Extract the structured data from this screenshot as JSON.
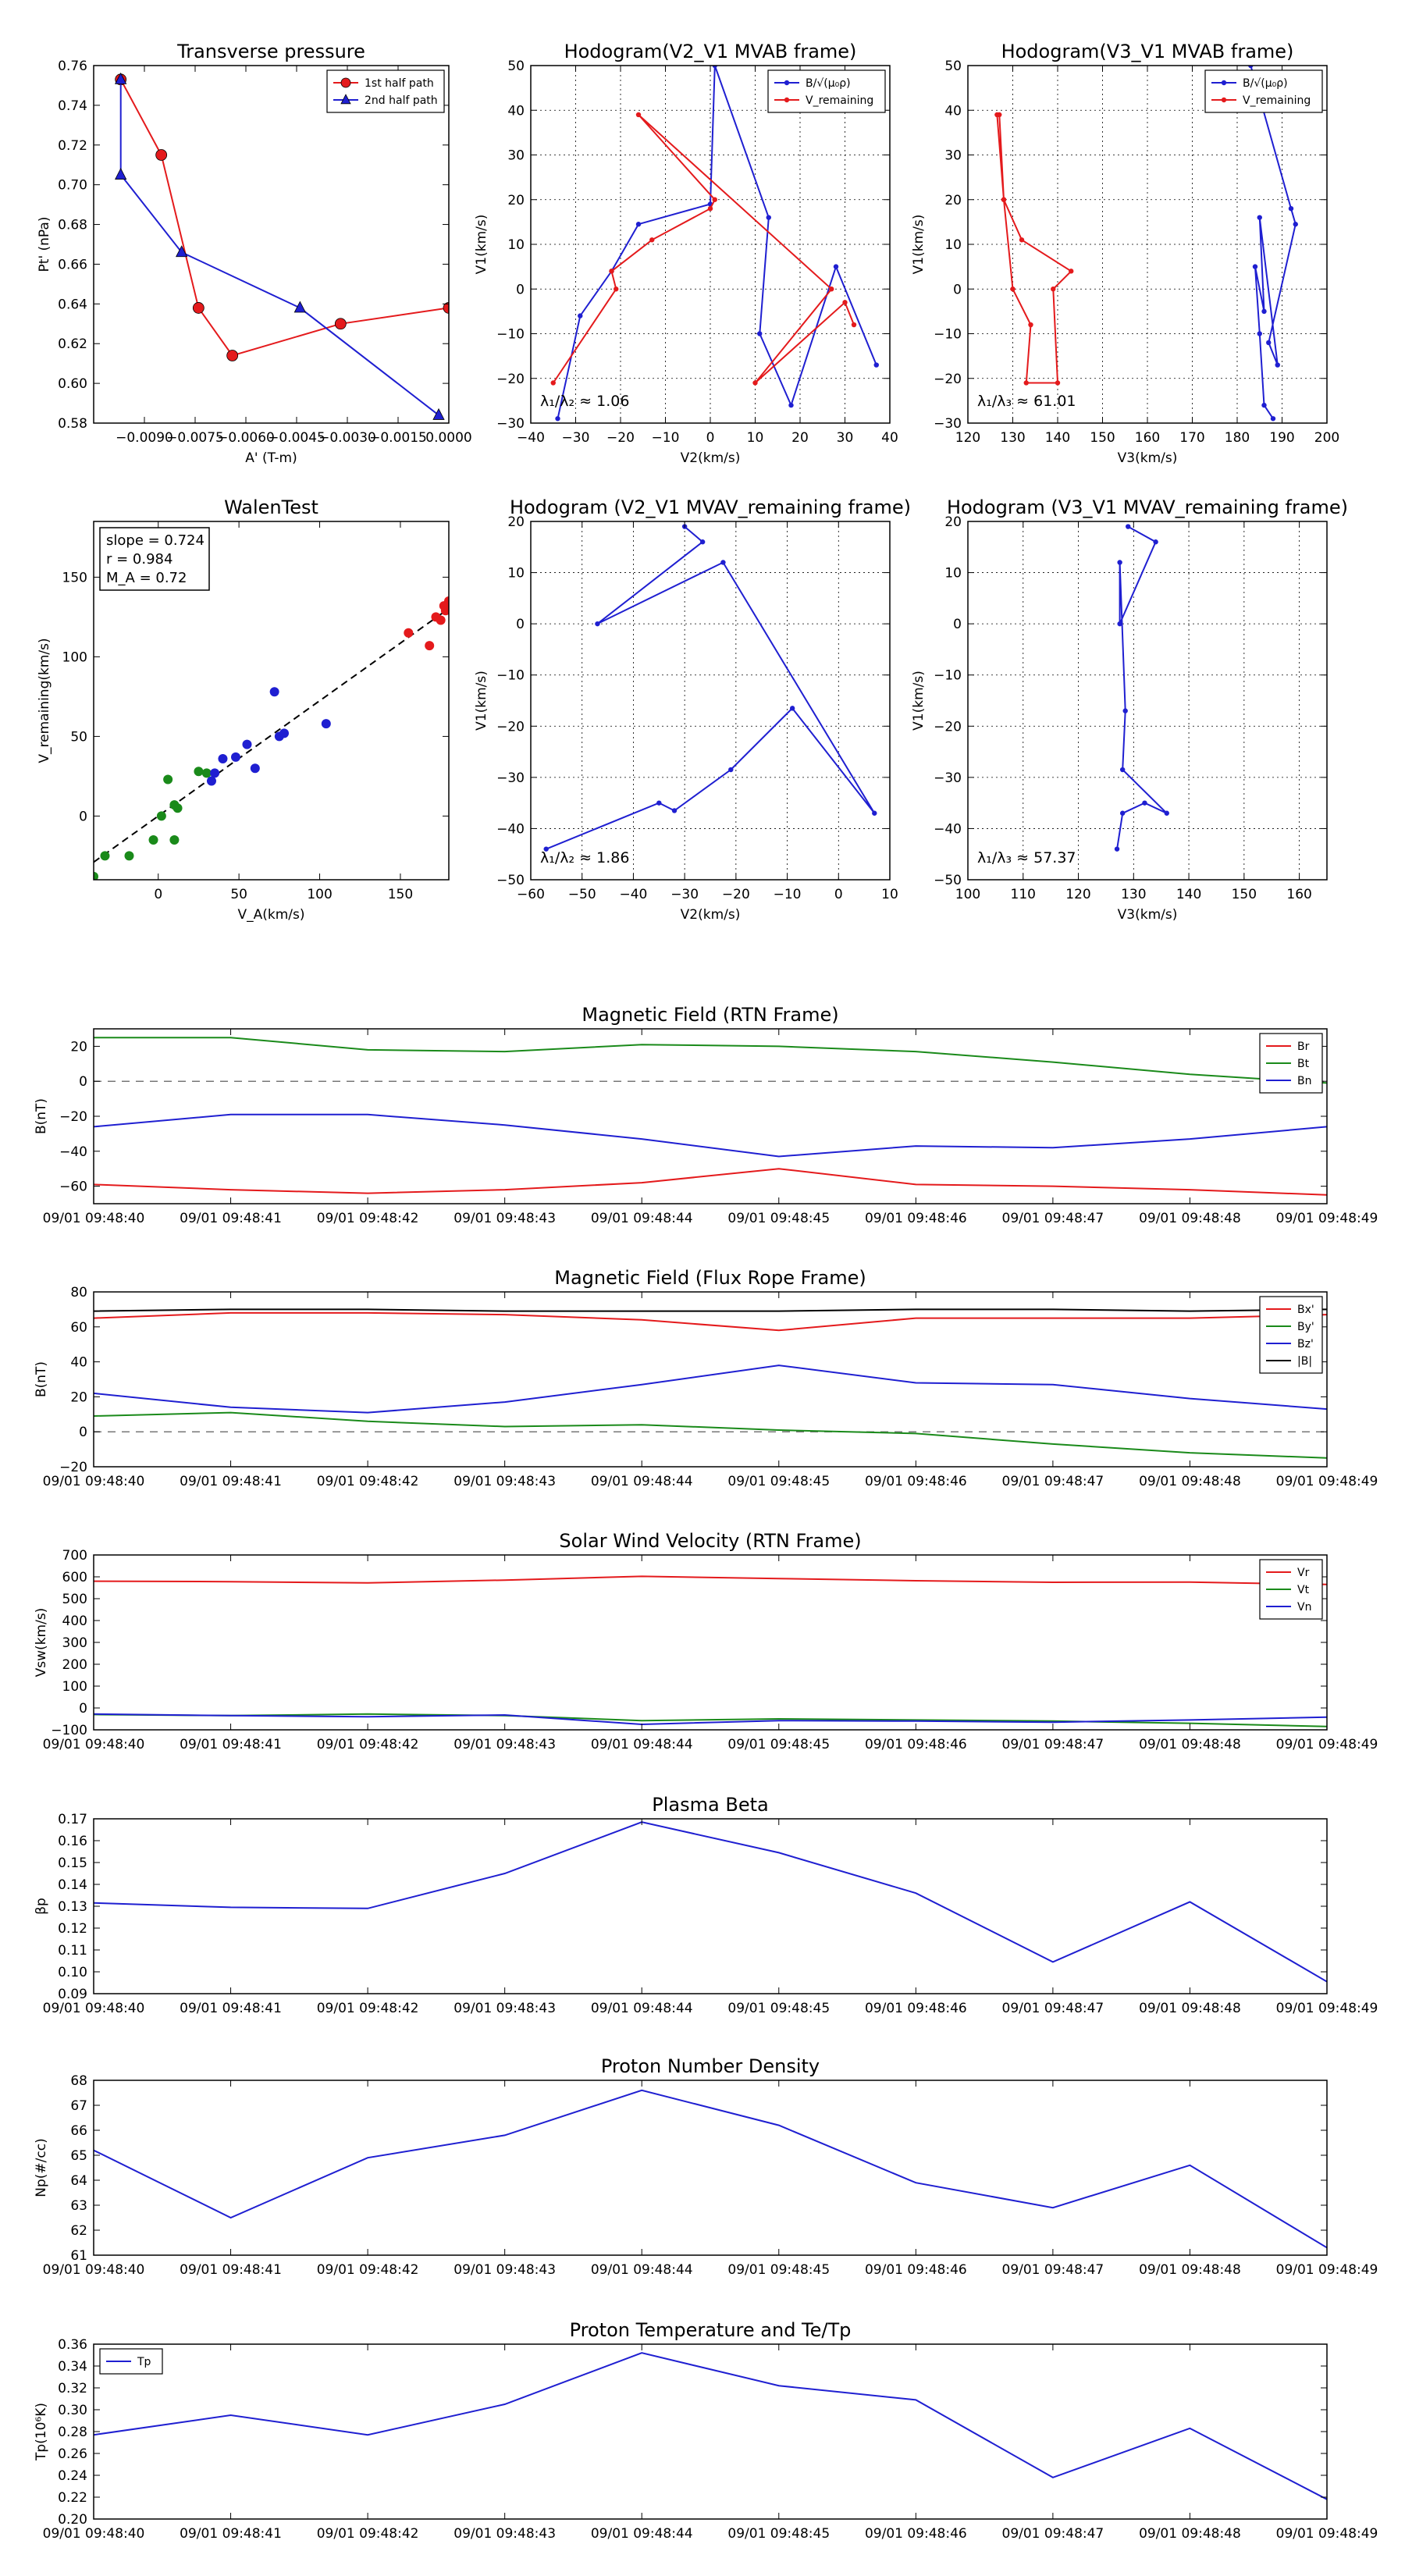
{
  "chart_data": [
    {
      "id": "transverse-pressure",
      "type": "line",
      "title": "Transverse pressure",
      "xlabel": "A' (T-m)",
      "ylabel": "Pt' (nPa)",
      "xlim": [
        -0.0105,
        0.0
      ],
      "ylim": [
        0.58,
        0.76
      ],
      "xticks": [
        -0.009,
        -0.0075,
        -0.006,
        -0.0045,
        -0.003,
        -0.0015,
        0.0
      ],
      "xticklabels": [
        "−0.0090",
        "−0.0075",
        "−0.0060",
        "−0.0045",
        "−0.0030",
        "−0.0015",
        "0.0000"
      ],
      "yticks": [
        0.58,
        0.6,
        0.62,
        0.64,
        0.66,
        0.68,
        0.7,
        0.72,
        0.74,
        0.76
      ],
      "yticklabels": [
        "0.58",
        "0.60",
        "0.62",
        "0.64",
        "0.66",
        "0.68",
        "0.70",
        "0.72",
        "0.74",
        "0.76"
      ],
      "grid": false,
      "legend": "top-right",
      "series": [
        {
          "name": "1st half path",
          "color": "#e41a1c",
          "marker": "circle",
          "x": [
            -0.0097,
            -0.0085,
            -0.0074,
            -0.0064,
            -0.0032,
            0.0
          ],
          "y": [
            0.753,
            0.715,
            0.638,
            0.614,
            0.63,
            0.638
          ]
        },
        {
          "name": "2nd half path",
          "color": "#1f1fd1",
          "marker": "triangle",
          "x": [
            -0.0097,
            -0.0097,
            -0.0079,
            -0.0044,
            -0.0003
          ],
          "y": [
            0.753,
            0.705,
            0.666,
            0.638,
            0.584
          ]
        }
      ]
    },
    {
      "id": "hodogram-v2v1-mvab",
      "type": "line",
      "title": "Hodogram(V2_V1 MVAB frame)",
      "xlabel": "V2(km/s)",
      "ylabel": "V1(km/s)",
      "xlim": [
        -40,
        40
      ],
      "ylim": [
        -30,
        50
      ],
      "xticks": [
        -40,
        -30,
        -20,
        -10,
        0,
        10,
        20,
        30,
        40
      ],
      "xticklabels": [
        "−40",
        "−30",
        "−20",
        "−10",
        "0",
        "10",
        "20",
        "30",
        "40"
      ],
      "yticks": [
        -30,
        -20,
        -10,
        0,
        10,
        20,
        30,
        40,
        50
      ],
      "yticklabels": [
        "−30",
        "−20",
        "−10",
        "0",
        "10",
        "20",
        "30",
        "40",
        "50"
      ],
      "grid": true,
      "legend": "top-right",
      "annotation": "λ₁/λ₂ ≈ 1.06",
      "series": [
        {
          "name": "B/√(μ₀ρ)",
          "color": "#1f1fd1",
          "x": [
            -34,
            -29,
            -22,
            -16,
            0,
            1,
            13,
            11,
            18,
            28,
            37
          ],
          "y": [
            -29,
            -6,
            4,
            14.5,
            19,
            50,
            16,
            -10,
            -26,
            5,
            -17
          ]
        },
        {
          "name": "V_remaining",
          "color": "#e41a1c",
          "x": [
            -35,
            -21,
            -22,
            -13,
            0,
            1,
            -16,
            27,
            10,
            30,
            32
          ],
          "y": [
            -21,
            0,
            4,
            11,
            18,
            20,
            39,
            0,
            -21,
            -3,
            -8
          ]
        }
      ]
    },
    {
      "id": "hodogram-v3v1-mvab",
      "type": "line",
      "title": "Hodogram(V3_V1 MVAB frame)",
      "xlabel": "V3(km/s)",
      "ylabel": "V1(km/s)",
      "xlim": [
        120,
        200
      ],
      "ylim": [
        -30,
        50
      ],
      "xticks": [
        120,
        130,
        140,
        150,
        160,
        170,
        180,
        190,
        200
      ],
      "xticklabels": [
        "120",
        "130",
        "140",
        "150",
        "160",
        "170",
        "180",
        "190",
        "200"
      ],
      "yticks": [
        -30,
        -20,
        -10,
        0,
        10,
        20,
        30,
        40,
        50
      ],
      "yticklabels": [
        "−30",
        "−20",
        "−10",
        "0",
        "10",
        "20",
        "30",
        "40",
        "50"
      ],
      "grid": true,
      "legend": "top-right",
      "annotation": "λ₁/λ₃ ≈ 61.01",
      "series": [
        {
          "name": "B/√(μ₀ρ)",
          "color": "#1f1fd1",
          "x": [
            188,
            186,
            185,
            184,
            186,
            185,
            189,
            187,
            193,
            192,
            183
          ],
          "y": [
            -29,
            -26,
            -10,
            5,
            -5,
            16,
            -17,
            -12,
            14.5,
            18,
            50
          ]
        },
        {
          "name": "V_remaining",
          "color": "#e41a1c",
          "x": [
            126.5,
            128,
            130,
            134,
            133,
            140,
            139,
            143,
            132,
            128,
            127
          ],
          "y": [
            39,
            20,
            0,
            -8,
            -21,
            -21,
            0,
            4,
            11,
            20,
            39
          ]
        }
      ]
    },
    {
      "id": "walen-test",
      "type": "scatter",
      "title": "WalenTest",
      "xlabel": "V_A(km/s)",
      "ylabel": "V_remaining(km/s)",
      "xlim": [
        -40,
        180
      ],
      "ylim": [
        -40,
        185
      ],
      "xticks": [
        0,
        50,
        100,
        150
      ],
      "xticklabels": [
        "0",
        "50",
        "100",
        "150"
      ],
      "yticks": [
        0,
        50,
        100,
        150
      ],
      "yticklabels": [
        "0",
        "50",
        "100",
        "150"
      ],
      "grid": false,
      "annotation": [
        "slope = 0.724",
        "r = 0.984",
        "M_A = 0.72"
      ],
      "fit_line": {
        "slope": 0.724,
        "intercept": 0
      },
      "series": [
        {
          "name": "green",
          "color": "#1a8a1a",
          "x": [
            -40,
            -33,
            -18,
            -3,
            2,
            6,
            12,
            10,
            25,
            30,
            10
          ],
          "y": [
            -38,
            -25,
            -25,
            -15,
            0,
            23,
            5,
            -15,
            28,
            27,
            7
          ]
        },
        {
          "name": "blue",
          "color": "#1f1fd1",
          "x": [
            33,
            35,
            40,
            48,
            55,
            60,
            72,
            75,
            78,
            104
          ],
          "y": [
            22,
            27,
            36,
            37,
            45,
            30,
            78,
            50,
            52,
            58
          ]
        },
        {
          "name": "red",
          "color": "#e41a1c",
          "x": [
            155,
            168,
            172,
            175,
            177,
            178,
            180
          ],
          "y": [
            115,
            107,
            125,
            123,
            132,
            129,
            135
          ]
        }
      ]
    },
    {
      "id": "hodogram-v2v1-mvav",
      "type": "line",
      "title": "Hodogram (V2_V1 MVAV_remaining frame)",
      "xlabel": "V2(km/s)",
      "ylabel": "V1(km/s)",
      "xlim": [
        -60,
        10
      ],
      "ylim": [
        -50,
        20
      ],
      "xticks": [
        -60,
        -50,
        -40,
        -30,
        -20,
        -10,
        0,
        10
      ],
      "xticklabels": [
        "−60",
        "−50",
        "−40",
        "−30",
        "−20",
        "−10",
        "0",
        "10"
      ],
      "yticks": [
        -50,
        -40,
        -30,
        -20,
        -10,
        0,
        10,
        20
      ],
      "yticklabels": [
        "−50",
        "−40",
        "−30",
        "−20",
        "−10",
        "0",
        "10",
        "20"
      ],
      "grid": true,
      "annotation": "λ₁/λ₂ ≈ 1.86",
      "series": [
        {
          "name": "hodogram",
          "color": "#1f1fd1",
          "x": [
            -30,
            -26.5,
            -47,
            -22.5,
            7,
            -9,
            -21,
            -32,
            -35,
            -57
          ],
          "y": [
            19,
            16,
            0,
            12,
            -37,
            -16.5,
            -28.5,
            -36.5,
            -35,
            -44
          ]
        }
      ]
    },
    {
      "id": "hodogram-v3v1-mvav",
      "type": "line",
      "title": "Hodogram (V3_V1 MVAV_remaining frame)",
      "xlabel": "V3(km/s)",
      "ylabel": "V1(km/s)",
      "xlim": [
        100,
        165
      ],
      "ylim": [
        -50,
        20
      ],
      "xticks": [
        100,
        110,
        120,
        130,
        140,
        150,
        160
      ],
      "xticklabels": [
        "100",
        "110",
        "120",
        "130",
        "140",
        "150",
        "160"
      ],
      "yticks": [
        -50,
        -40,
        -30,
        -20,
        -10,
        0,
        10,
        20
      ],
      "yticklabels": [
        "−50",
        "−40",
        "−30",
        "−20",
        "−10",
        "0",
        "10",
        "20"
      ],
      "grid": true,
      "annotation": "λ₁/λ₃ ≈ 57.37",
      "series": [
        {
          "name": "hodogram",
          "color": "#1f1fd1",
          "x": [
            129,
            134,
            127.5,
            127.5,
            128.5,
            128,
            136,
            132,
            128,
            127
          ],
          "y": [
            19,
            16,
            0,
            12,
            -17,
            -28.5,
            -37,
            -35,
            -37,
            -44
          ]
        }
      ]
    },
    {
      "id": "magnetic-field-rtn",
      "type": "line",
      "title": "Magnetic Field (RTN Frame)",
      "xlabel": "",
      "ylabel": "B(nT)",
      "ylim": [
        -70,
        30
      ],
      "yticks": [
        -60,
        -40,
        -20,
        0,
        20
      ],
      "yticklabels": [
        "−60",
        "−40",
        "−20",
        "0",
        "20"
      ],
      "zero_line": true,
      "legend": "top-right",
      "series": [
        {
          "name": "Br",
          "color": "#e41a1c",
          "values": [
            -59,
            -62,
            -64,
            -62,
            -58,
            -50,
            -59,
            -60,
            -62,
            -65
          ]
        },
        {
          "name": "Bt",
          "color": "#1a8a1a",
          "values": [
            25,
            25,
            18,
            17,
            21,
            20,
            17,
            11,
            4,
            -1
          ]
        },
        {
          "name": "Bn",
          "color": "#1f1fd1",
          "values": [
            -26,
            -19,
            -19,
            -25,
            -33,
            -43,
            -37,
            -38,
            -33,
            -26
          ]
        }
      ]
    },
    {
      "id": "magnetic-field-flux-rope",
      "type": "line",
      "title": "Magnetic Field (Flux Rope Frame)",
      "xlabel": "",
      "ylabel": "B(nT)",
      "ylim": [
        -20,
        80
      ],
      "yticks": [
        -20,
        0,
        20,
        40,
        60,
        80
      ],
      "yticklabels": [
        "−20",
        "0",
        "20",
        "40",
        "60",
        "80"
      ],
      "zero_line": true,
      "legend": "top-right",
      "series": [
        {
          "name": "Bx'",
          "color": "#e41a1c",
          "values": [
            65,
            68,
            68,
            67,
            64,
            58,
            65,
            65,
            65,
            67
          ]
        },
        {
          "name": "By'",
          "color": "#1a8a1a",
          "values": [
            9,
            11,
            6,
            3,
            4,
            1,
            -1,
            -7,
            -12,
            -15
          ]
        },
        {
          "name": "Bz'",
          "color": "#1f1fd1",
          "values": [
            22,
            14,
            11,
            17,
            27,
            38,
            28,
            27,
            19,
            13
          ]
        },
        {
          "name": "|B|",
          "color": "#000000",
          "values": [
            69,
            70,
            70,
            69,
            69,
            69,
            70,
            70,
            69,
            70
          ]
        }
      ]
    },
    {
      "id": "solar-wind-velocity",
      "type": "line",
      "title": "Solar Wind Velocity (RTN Frame)",
      "xlabel": "",
      "ylabel": "Vsw(km/s)",
      "ylim": [
        -100,
        700
      ],
      "yticks": [
        -100,
        0,
        100,
        200,
        300,
        400,
        500,
        600,
        700
      ],
      "yticklabels": [
        "−100",
        "0",
        "100",
        "200",
        "300",
        "400",
        "500",
        "600",
        "700"
      ],
      "legend": "top-right",
      "series": [
        {
          "name": "Vr",
          "color": "#e41a1c",
          "values": [
            580,
            578,
            572,
            585,
            602,
            592,
            582,
            575,
            576,
            565
          ]
        },
        {
          "name": "Vt",
          "color": "#1a8a1a",
          "values": [
            -30,
            -35,
            -28,
            -35,
            -58,
            -50,
            -55,
            -60,
            -70,
            -85
          ]
        },
        {
          "name": "Vn",
          "color": "#1f1fd1",
          "values": [
            -28,
            -35,
            -40,
            -32,
            -75,
            -58,
            -60,
            -65,
            -55,
            -42
          ]
        }
      ]
    },
    {
      "id": "plasma-beta",
      "type": "line",
      "title": "Plasma Beta",
      "xlabel": "",
      "ylabel": "βp",
      "ylim": [
        0.09,
        0.17
      ],
      "yticks": [
        0.09,
        0.1,
        0.11,
        0.12,
        0.13,
        0.14,
        0.15,
        0.16,
        0.17
      ],
      "yticklabels": [
        "0.09",
        "0.10",
        "0.11",
        "0.12",
        "0.13",
        "0.14",
        "0.15",
        "0.16",
        "0.17"
      ],
      "series": [
        {
          "name": "beta",
          "color": "#1f1fd1",
          "values": [
            0.1315,
            0.1295,
            0.129,
            0.145,
            0.1685,
            0.1545,
            0.136,
            0.1045,
            0.132,
            0.0955
          ]
        }
      ]
    },
    {
      "id": "proton-number-density",
      "type": "line",
      "title": "Proton Number Density",
      "xlabel": "",
      "ylabel": "Np(#/cc)",
      "ylim": [
        61,
        68
      ],
      "yticks": [
        61,
        62,
        63,
        64,
        65,
        66,
        67,
        68
      ],
      "yticklabels": [
        "61",
        "62",
        "63",
        "64",
        "65",
        "66",
        "67",
        "68"
      ],
      "series": [
        {
          "name": "Np",
          "color": "#1f1fd1",
          "values": [
            65.2,
            62.5,
            64.9,
            65.8,
            67.6,
            66.2,
            63.9,
            62.9,
            64.6,
            61.3
          ]
        }
      ]
    },
    {
      "id": "proton-temperature",
      "type": "line",
      "title": "Proton Temperature and Te/Tp",
      "xlabel": "",
      "ylabel": "Tp(10⁶K)",
      "ylim": [
        0.2,
        0.36
      ],
      "yticks": [
        0.2,
        0.22,
        0.24,
        0.26,
        0.28,
        0.3,
        0.32,
        0.34,
        0.36
      ],
      "yticklabels": [
        "0.20",
        "0.22",
        "0.24",
        "0.26",
        "0.28",
        "0.30",
        "0.32",
        "0.34",
        "0.36"
      ],
      "legend": "top-left",
      "series": [
        {
          "name": "Tp",
          "color": "#1f1fd1",
          "values": [
            0.277,
            0.295,
            0.277,
            0.305,
            0.352,
            0.322,
            0.309,
            0.238,
            0.283,
            0.218
          ]
        }
      ]
    }
  ],
  "time_axis": {
    "labels": [
      "09/01 09:48:40",
      "09/01 09:48:41",
      "09/01 09:48:42",
      "09/01 09:48:43",
      "09/01 09:48:44",
      "09/01 09:48:45",
      "09/01 09:48:46",
      "09/01 09:48:47",
      "09/01 09:48:48",
      "09/01 09:48:49"
    ]
  }
}
